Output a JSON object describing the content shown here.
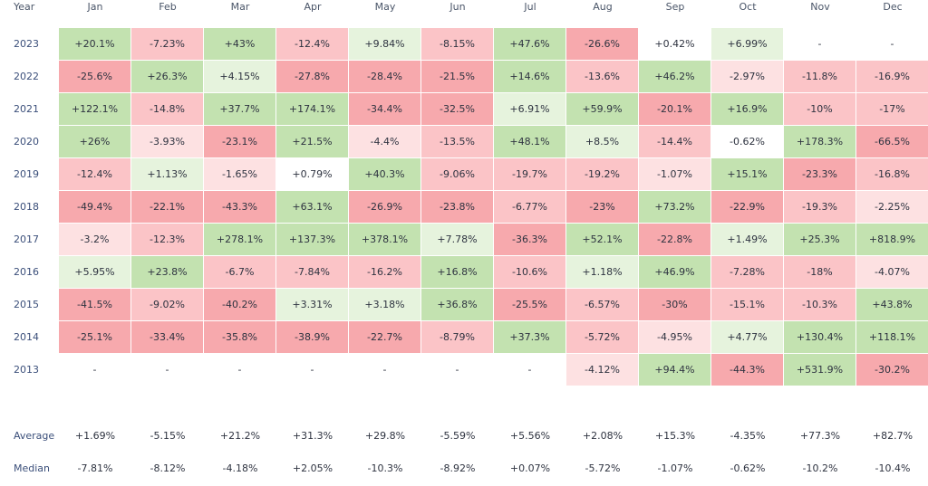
{
  "chart_data": {
    "type": "heatmap",
    "corner_label": "Year",
    "months": [
      "Jan",
      "Feb",
      "Mar",
      "Apr",
      "May",
      "Jun",
      "Jul",
      "Aug",
      "Sep",
      "Oct",
      "Nov",
      "Dec"
    ],
    "rows": [
      {
        "year": "2023",
        "values": [
          "+20.1%",
          "-7.23%",
          "+43%",
          "-12.4%",
          "+9.84%",
          "-8.15%",
          "+47.6%",
          "-26.6%",
          "+0.42%",
          "+6.99%",
          "-",
          "-"
        ]
      },
      {
        "year": "2022",
        "values": [
          "-25.6%",
          "+26.3%",
          "+4.15%",
          "-27.8%",
          "-28.4%",
          "-21.5%",
          "+14.6%",
          "-13.6%",
          "+46.2%",
          "-2.97%",
          "-11.8%",
          "-16.9%"
        ]
      },
      {
        "year": "2021",
        "values": [
          "+122.1%",
          "-14.8%",
          "+37.7%",
          "+174.1%",
          "-34.4%",
          "-32.5%",
          "+6.91%",
          "+59.9%",
          "-20.1%",
          "+16.9%",
          "-10%",
          "-17%"
        ]
      },
      {
        "year": "2020",
        "values": [
          "+26%",
          "-3.93%",
          "-23.1%",
          "+21.5%",
          "-4.4%",
          "-13.5%",
          "+48.1%",
          "+8.5%",
          "-14.4%",
          "-0.62%",
          "+178.3%",
          "-66.5%"
        ]
      },
      {
        "year": "2019",
        "values": [
          "-12.4%",
          "+1.13%",
          "-1.65%",
          "+0.79%",
          "+40.3%",
          "-9.06%",
          "-19.7%",
          "-19.2%",
          "-1.07%",
          "+15.1%",
          "-23.3%",
          "-16.8%"
        ]
      },
      {
        "year": "2018",
        "values": [
          "-49.4%",
          "-22.1%",
          "-43.3%",
          "+63.1%",
          "-26.9%",
          "-23.8%",
          "-6.77%",
          "-23%",
          "+73.2%",
          "-22.9%",
          "-19.3%",
          "-2.25%"
        ]
      },
      {
        "year": "2017",
        "values": [
          "-3.2%",
          "-12.3%",
          "+278.1%",
          "+137.3%",
          "+378.1%",
          "+7.78%",
          "-36.3%",
          "+52.1%",
          "-22.8%",
          "+1.49%",
          "+25.3%",
          "+818.9%"
        ]
      },
      {
        "year": "2016",
        "values": [
          "+5.95%",
          "+23.8%",
          "-6.7%",
          "-7.84%",
          "-16.2%",
          "+16.8%",
          "-10.6%",
          "+1.18%",
          "+46.9%",
          "-7.28%",
          "-18%",
          "-4.07%"
        ]
      },
      {
        "year": "2015",
        "values": [
          "-41.5%",
          "-9.02%",
          "-40.2%",
          "+3.31%",
          "+3.18%",
          "+36.8%",
          "-25.5%",
          "-6.57%",
          "-30%",
          "-15.1%",
          "-10.3%",
          "+43.8%"
        ]
      },
      {
        "year": "2014",
        "values": [
          "-25.1%",
          "-33.4%",
          "-35.8%",
          "-38.9%",
          "-22.7%",
          "-8.79%",
          "+37.3%",
          "-5.72%",
          "-4.95%",
          "+4.77%",
          "+130.4%",
          "+118.1%"
        ]
      },
      {
        "year": "2013",
        "values": [
          "-",
          "-",
          "-",
          "-",
          "-",
          "-",
          "-",
          "-4.12%",
          "+94.4%",
          "-44.3%",
          "+531.9%",
          "-30.2%"
        ]
      }
    ],
    "average": {
      "label": "Average",
      "values": [
        "+1.69%",
        "-5.15%",
        "+21.2%",
        "+31.3%",
        "+29.8%",
        "-5.59%",
        "+5.56%",
        "+2.08%",
        "+15.3%",
        "-4.35%",
        "+77.3%",
        "+82.7%"
      ]
    },
    "median": {
      "label": "Median",
      "values": [
        "-7.81%",
        "-8.12%",
        "-4.18%",
        "+2.05%",
        "-10.3%",
        "-8.92%",
        "+0.07%",
        "-5.72%",
        "-1.07%",
        "-0.62%",
        "-10.2%",
        "-10.4%"
      ]
    },
    "colors": {
      "pos_strong": "#c3e2b0",
      "pos_light": "#e6f3dd",
      "neg_strong": "#f7a9ad",
      "neg_mid": "#fbc4c7",
      "neg_light": "#fde1e2",
      "neutral": "#ffffff"
    }
  }
}
